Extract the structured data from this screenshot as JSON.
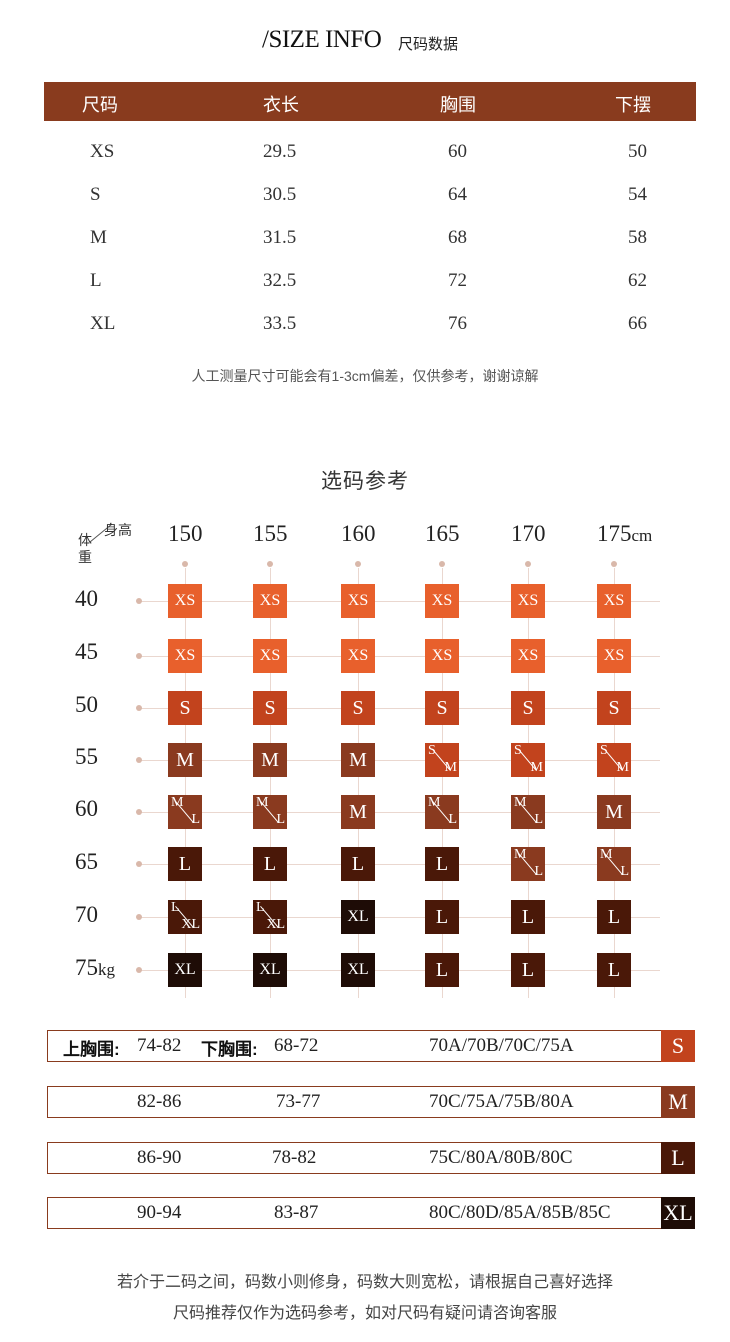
{
  "header": {
    "title_en": "/SIZE INFO",
    "title_cn": "尺码数据"
  },
  "size_table": {
    "headers": [
      "尺码",
      "衣长",
      "胸围",
      "下摆"
    ],
    "rows": [
      [
        "XS",
        "29.5",
        "60",
        "50"
      ],
      [
        "S",
        "30.5",
        "64",
        "54"
      ],
      [
        "M",
        "31.5",
        "68",
        "58"
      ],
      [
        "L",
        "32.5",
        "72",
        "62"
      ],
      [
        "XL",
        "33.5",
        "76",
        "66"
      ]
    ],
    "note": "人工测量尺寸可能会有1-3cm偏差，仅供参考，谢谢谅解"
  },
  "selection": {
    "title": "选码参考",
    "height_label": "身高",
    "weight_label": "体重",
    "heights": [
      "150",
      "155",
      "160",
      "165",
      "170",
      "175cm"
    ],
    "weights": [
      "40",
      "45",
      "50",
      "55",
      "60",
      "65",
      "70",
      "75kg"
    ],
    "grid": [
      [
        "XS",
        "XS",
        "XS",
        "XS",
        "XS",
        "XS"
      ],
      [
        "XS",
        "XS",
        "XS",
        "XS",
        "XS",
        "XS"
      ],
      [
        "S",
        "S",
        "S",
        "S",
        "S",
        "S"
      ],
      [
        "M",
        "M",
        "M",
        "S/M",
        "S/M",
        "S/M"
      ],
      [
        "M/L",
        "M/L",
        "M",
        "M/L",
        "M/L",
        "M"
      ],
      [
        "L",
        "L",
        "L",
        "L",
        "M/L",
        "M/L"
      ],
      [
        "L/XL",
        "L/XL",
        "XL",
        "L",
        "L",
        "L"
      ],
      [
        "XL",
        "XL",
        "XL",
        "L",
        "L",
        "L"
      ]
    ],
    "colors": {
      "XS": "#e8602c",
      "S": "#c2431d",
      "S/M": "#c2431d",
      "M": "#8a3a1f",
      "M/L": "#8a3a1f",
      "L": "#4a1808",
      "L/XL": "#4a1808",
      "XL": "#1e0c06"
    }
  },
  "bra_table": {
    "upper_label": "上胸围:",
    "lower_label": "下胸围:",
    "rows": [
      {
        "upper": "74-82",
        "lower": "68-72",
        "cups": "70A/70B/70C/75A",
        "size": "S",
        "color": "#c2431d"
      },
      {
        "upper": "82-86",
        "lower": "73-77",
        "cups": "70C/75A/75B/80A",
        "size": "M",
        "color": "#8a3a1f"
      },
      {
        "upper": "86-90",
        "lower": "78-82",
        "cups": "75C/80A/80B/80C",
        "size": "L",
        "color": "#4a1808"
      },
      {
        "upper": "90-94",
        "lower": "83-87",
        "cups": "80C/80D/85A/85B/85C",
        "size": "XL",
        "color": "#1e0c06"
      }
    ]
  },
  "footer": {
    "line1": "若介于二码之间，码数小则修身，码数大则宽松，请根据自己喜好选择",
    "line2": "尺码推荐仅作为选码参考，如对尺码有疑问请咨询客服"
  }
}
